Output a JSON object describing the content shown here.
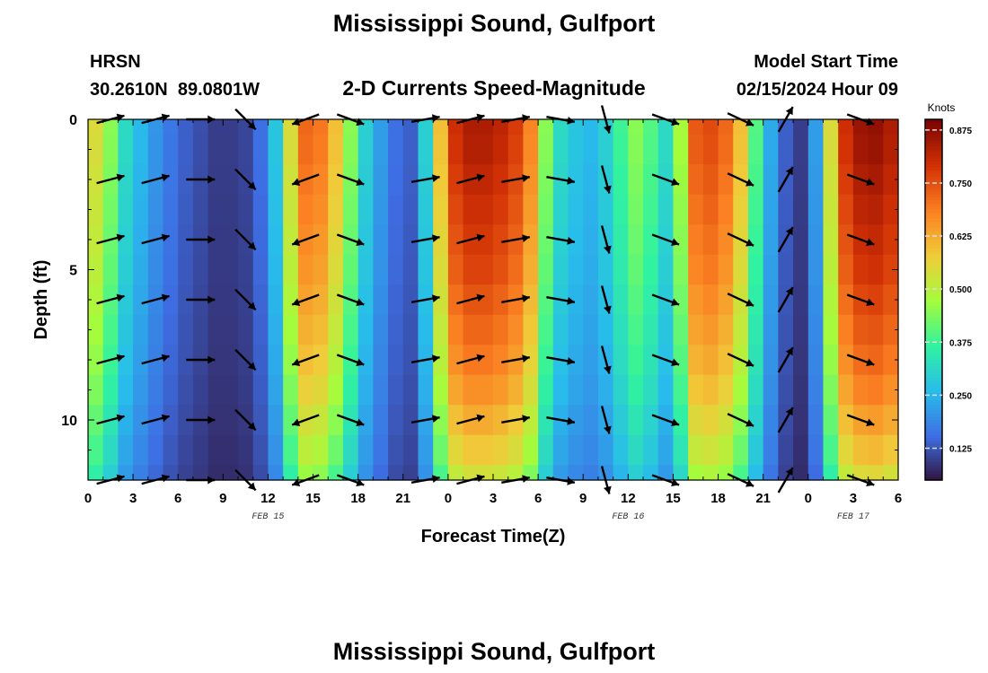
{
  "title": "Mississippi Sound, Gulfport",
  "footer_title": "Mississippi Sound, Gulfport",
  "station": {
    "id": "HRSN",
    "coords": "30.2610N  89.0801W"
  },
  "subtitle": "2-D Currents Speed-Magnitude",
  "model_start": {
    "label": "Model Start Time",
    "value": "02/15/2024 Hour 09"
  },
  "chart_data": {
    "type": "heatmap",
    "title": "2-D Currents Speed-Magnitude",
    "xlabel": "Forecast Time(Z)",
    "ylabel": "Depth (ft)",
    "x_range_hours": [
      0,
      54
    ],
    "y_range_ft": [
      0,
      12
    ],
    "y_inverted": true,
    "x_tick_labels": [
      "0",
      "3",
      "6",
      "9",
      "12",
      "15",
      "18",
      "21",
      "0",
      "3",
      "6",
      "9",
      "12",
      "15",
      "18",
      "21",
      "0",
      "3",
      "6"
    ],
    "y_tick_labels": [
      "0",
      "5",
      "10"
    ],
    "y_tick_values": [
      0,
      5,
      10
    ],
    "date_labels": [
      {
        "text": "FEB 15",
        "hour": 12
      },
      {
        "text": "FEB 16",
        "hour": 36
      },
      {
        "text": "FEB 17",
        "hour": 51
      }
    ],
    "depths_ft": [
      0,
      1,
      2,
      3,
      4,
      5,
      6,
      7,
      8,
      9,
      10,
      11,
      12
    ],
    "surface_speed_profile": {
      "hours": [
        0,
        1,
        2,
        3,
        4,
        5,
        6,
        7,
        8,
        9,
        10,
        11,
        12,
        13,
        14,
        15,
        16,
        17,
        18,
        19,
        20,
        21,
        22,
        23,
        24,
        25,
        26,
        27,
        28,
        29,
        30,
        31,
        32,
        33,
        34,
        35,
        36,
        37,
        38,
        39,
        40,
        41,
        42,
        43,
        44,
        45,
        46,
        47,
        48,
        49,
        50,
        51,
        52,
        53,
        54
      ],
      "knots": [
        0.55,
        0.45,
        0.32,
        0.26,
        0.21,
        0.17,
        0.14,
        0.12,
        0.1,
        0.1,
        0.11,
        0.16,
        0.28,
        0.55,
        0.72,
        0.7,
        0.6,
        0.45,
        0.3,
        0.22,
        0.16,
        0.14,
        0.3,
        0.6,
        0.8,
        0.84,
        0.84,
        0.82,
        0.78,
        0.68,
        0.45,
        0.32,
        0.28,
        0.26,
        0.3,
        0.38,
        0.45,
        0.4,
        0.32,
        0.48,
        0.74,
        0.76,
        0.72,
        0.6,
        0.4,
        0.24,
        0.14,
        0.1,
        0.22,
        0.55,
        0.8,
        0.86,
        0.87,
        0.84,
        0.8
      ]
    },
    "depth_factors": [
      1.0,
      0.99,
      0.97,
      0.95,
      0.93,
      0.91,
      0.88,
      0.85,
      0.82,
      0.78,
      0.73,
      0.68,
      0.62
    ],
    "arrow_hours": [
      1.5,
      4.5,
      7.5,
      10.5,
      14.5,
      17.5,
      22.5,
      25.5,
      28.5,
      31.5,
      34.5,
      38.5,
      43.5,
      46.5,
      51.5
    ],
    "arrow_depths_ft": [
      0,
      2,
      4,
      6,
      8,
      10,
      12
    ],
    "arrow_directions_deg": [
      15,
      15,
      0,
      315,
      200,
      340,
      10,
      15,
      10,
      350,
      285,
      340,
      335,
      60,
      340
    ],
    "colorbar": {
      "label": "Knots",
      "min": 0.05,
      "max": 0.9,
      "ticks": [
        "0.875",
        "0.750",
        "0.625",
        "0.500",
        "0.375",
        "0.250",
        "0.125"
      ],
      "tick_values": [
        0.875,
        0.75,
        0.625,
        0.5,
        0.375,
        0.25,
        0.125
      ]
    },
    "colormap": [
      "#30123b",
      "#3e6ee3",
      "#28bceb",
      "#31f2a0",
      "#a4fc3c",
      "#f0cc3a",
      "#fb8022",
      "#d23105",
      "#7a0403"
    ],
    "grid": false,
    "legend": "colorbar-right"
  }
}
